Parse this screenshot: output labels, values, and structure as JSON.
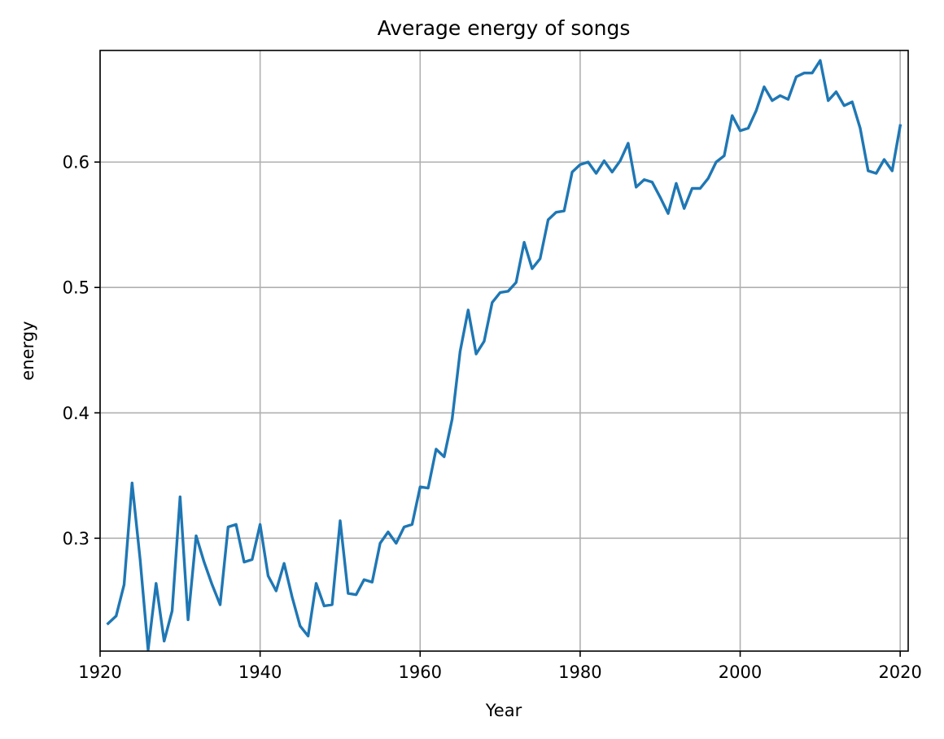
{
  "chart_data": {
    "type": "line",
    "title": "Average energy of songs",
    "xlabel": "Year",
    "ylabel": "energy",
    "xlim": [
      1920,
      2021
    ],
    "ylim": [
      0.21,
      0.689
    ],
    "xticks": [
      1920,
      1940,
      1960,
      1980,
      2000,
      2020
    ],
    "xtick_labels": [
      "1920",
      "1940",
      "1960",
      "1980",
      "2000",
      "2020"
    ],
    "yticks": [
      0.3,
      0.4,
      0.5,
      0.6
    ],
    "ytick_labels": [
      "0.3",
      "0.4",
      "0.5",
      "0.6"
    ],
    "grid": true,
    "colors": {
      "series": "#1f77b4",
      "grid": "#b0b0b0",
      "axis": "#000000"
    },
    "series": [
      {
        "x": [
          1921,
          1922,
          1923,
          1924,
          1925,
          1926,
          1927,
          1928,
          1929,
          1930,
          1931,
          1932,
          1933,
          1934,
          1935,
          1936,
          1937,
          1938,
          1939,
          1940,
          1941,
          1942,
          1943,
          1944,
          1945,
          1946,
          1947,
          1948,
          1949,
          1950,
          1951,
          1952,
          1953,
          1954,
          1955,
          1956,
          1957,
          1958,
          1959,
          1960,
          1961,
          1962,
          1963,
          1964,
          1965,
          1966,
          1967,
          1968,
          1969,
          1970,
          1971,
          1972,
          1973,
          1974,
          1975,
          1976,
          1977,
          1978,
          1979,
          1980,
          1981,
          1982,
          1983,
          1984,
          1985,
          1986,
          1987,
          1988,
          1989,
          1990,
          1991,
          1992,
          1993,
          1994,
          1995,
          1996,
          1997,
          1998,
          1999,
          2000,
          2001,
          2002,
          2003,
          2004,
          2005,
          2006,
          2007,
          2008,
          2009,
          2010,
          2011,
          2012,
          2013,
          2014,
          2015,
          2016,
          2017,
          2018,
          2019,
          2020
        ],
        "y": [
          0.232,
          0.238,
          0.263,
          0.344,
          0.283,
          0.211,
          0.264,
          0.218,
          0.242,
          0.333,
          0.235,
          0.302,
          0.281,
          0.263,
          0.247,
          0.309,
          0.311,
          0.281,
          0.283,
          0.311,
          0.27,
          0.258,
          0.28,
          0.253,
          0.23,
          0.222,
          0.264,
          0.246,
          0.247,
          0.314,
          0.256,
          0.255,
          0.267,
          0.265,
          0.296,
          0.305,
          0.296,
          0.309,
          0.311,
          0.341,
          0.34,
          0.371,
          0.365,
          0.395,
          0.449,
          0.482,
          0.447,
          0.457,
          0.488,
          0.496,
          0.497,
          0.504,
          0.536,
          0.515,
          0.523,
          0.554,
          0.56,
          0.561,
          0.592,
          0.598,
          0.6,
          0.591,
          0.601,
          0.592,
          0.601,
          0.615,
          0.58,
          0.586,
          0.584,
          0.572,
          0.559,
          0.583,
          0.563,
          0.579,
          0.579,
          0.587,
          0.6,
          0.605,
          0.637,
          0.625,
          0.627,
          0.641,
          0.66,
          0.649,
          0.653,
          0.65,
          0.668,
          0.671,
          0.671,
          0.681,
          0.649,
          0.656,
          0.645,
          0.648,
          0.627,
          0.593,
          0.591,
          0.602,
          0.593,
          0.629
        ]
      }
    ]
  }
}
